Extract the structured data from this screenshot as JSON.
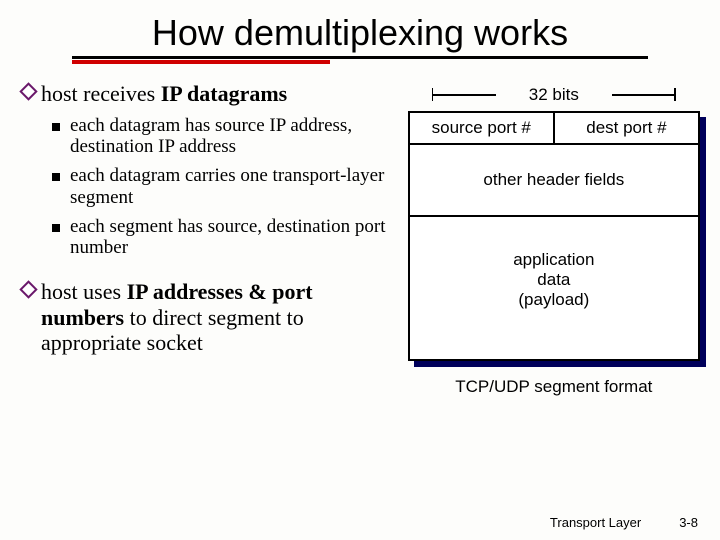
{
  "title": "How demultiplexing works",
  "left": {
    "main1_pre": "host receives ",
    "main1_b": "IP datagrams",
    "sub1": "each datagram has source IP address, destination IP address",
    "sub2": "each datagram carries one transport-layer segment",
    "sub3": "each segment has source, destination port number",
    "main2_pre": "host uses ",
    "main2_b": "IP addresses & port numbers",
    "main2_post": " to direct segment to appropriate socket"
  },
  "diagram": {
    "bits_label": "32 bits",
    "src_port": "source port #",
    "dst_port": "dest port #",
    "other": "other header fields",
    "payload_l1": "application",
    "payload_l2": "data",
    "payload_l3": "(payload)",
    "caption": "TCP/UDP segment format",
    "colors": {
      "shadow": "#00005a",
      "border": "#000000",
      "bg": "#ffffff"
    }
  },
  "footer": {
    "layer": "Transport Layer",
    "page": "3-8"
  }
}
